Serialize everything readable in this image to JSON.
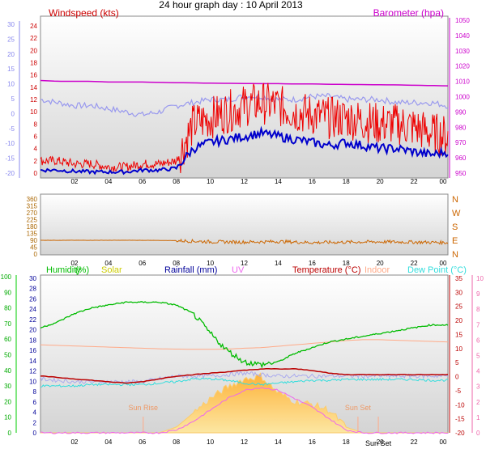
{
  "title": "24 hour graph day : 10 April 2013",
  "colors": {
    "wind": "#ee0000",
    "gust": "#0000cc",
    "winddir_line": "#9999ee",
    "baro": "#cc00cc",
    "dir": "#cc6600",
    "humidity": "#00bb00",
    "solar": "#cccc00",
    "solar_fill": "#ffcc66",
    "rain": "#000099",
    "uv": "#ee66ee",
    "temp": "#bb0000",
    "indoor": "#ffaa88",
    "dew": "#33dddd",
    "axis_green": "#00cc00",
    "axis_blue": "#8888ee",
    "axis_pink": "#ee66aa",
    "plot_bg_top": "#ffffff",
    "plot_bg_bottom": "#d6d6d6"
  },
  "x_ticks": [
    "02",
    "04",
    "06",
    "08",
    "10",
    "12",
    "14",
    "16",
    "18",
    "20",
    "22",
    "00"
  ],
  "chart_data": [
    {
      "type": "line",
      "panel": "wind",
      "labels": {
        "left": "Windspeed (kts)",
        "right": "Barometer (hpa)"
      },
      "left_axis_ticks": [
        "24",
        "22",
        "20",
        "18",
        "16",
        "14",
        "12",
        "10",
        "8",
        "6",
        "4",
        "2",
        "0"
      ],
      "outer_axis_ticks": [
        "30",
        "25",
        "20",
        "15",
        "10",
        "5",
        "0",
        "-5",
        "-10",
        "-15",
        "-20"
      ],
      "right_axis_ticks": [
        "1050",
        "1040",
        "1030",
        "1020",
        "1010",
        "1000",
        "990",
        "980",
        "970",
        "960",
        "950"
      ],
      "ylim_kts": [
        0,
        25
      ],
      "ylim_hpa": [
        948,
        1052
      ],
      "x_hours": [
        0,
        1,
        2,
        3,
        4,
        5,
        6,
        7,
        8,
        9,
        10,
        11,
        12,
        13,
        14,
        15,
        16,
        17,
        18,
        19,
        20,
        21,
        22,
        23,
        24
      ],
      "series": [
        {
          "key": "wind",
          "values": [
            2,
            2,
            1.5,
            1.5,
            1,
            1,
            1.5,
            1.5,
            2,
            8,
            9,
            10,
            11,
            11.5,
            11,
            10,
            9.5,
            9,
            9,
            8.5,
            8,
            8,
            7.5,
            6.5,
            6
          ]
        },
        {
          "key": "gust",
          "values": [
            0.5,
            0.5,
            0.3,
            0.2,
            0.2,
            0.2,
            0.5,
            0.5,
            0.8,
            4,
            5,
            5.5,
            6,
            6.5,
            6,
            5.5,
            5,
            4.5,
            5,
            4.5,
            4,
            4,
            3.5,
            3,
            3.5
          ]
        },
        {
          "key": "dirline",
          "values": [
            12,
            11.5,
            11,
            11,
            10.5,
            10,
            9.5,
            10,
            11,
            11.5,
            12,
            12,
            12.5,
            12.5,
            12,
            12,
            12.5,
            12.5,
            12,
            12,
            12,
            11.5,
            11.5,
            11.5,
            11
          ]
        },
        {
          "key": "baro_hpa",
          "values": [
            1012,
            1011.5,
            1011.5,
            1011.5,
            1011,
            1011,
            1011,
            1010.8,
            1010.6,
            1010.5,
            1010.3,
            1010.2,
            1010.1,
            1010,
            1010,
            1009.8,
            1009.8,
            1009.6,
            1009.5,
            1009.4,
            1009.3,
            1009.2,
            1009,
            1008.8,
            1008.6
          ]
        }
      ]
    },
    {
      "type": "line",
      "panel": "direction",
      "left_axis_ticks": [
        "360",
        "315",
        "270",
        "225",
        "180",
        "135",
        "90",
        "45",
        "0"
      ],
      "right_labels": [
        "N",
        "W",
        "S",
        "E",
        "N"
      ],
      "ylim": [
        0,
        360
      ],
      "x_hours": [
        0,
        2,
        4,
        6,
        8,
        10,
        12,
        14,
        16,
        18,
        20,
        22,
        24
      ],
      "series": [
        {
          "key": "dir",
          "values": [
            90,
            90,
            90,
            90,
            88,
            80,
            78,
            82,
            75,
            78,
            80,
            78,
            75
          ]
        }
      ]
    },
    {
      "type": "area",
      "panel": "multi",
      "legend": [
        {
          "key": "humidity",
          "text": "Humidity"
        },
        {
          "key": "humidity_unit",
          "text": "(%)"
        },
        {
          "key": "solar",
          "text": "Solar"
        },
        {
          "key": "rain",
          "text": "Rainfall (mm)"
        },
        {
          "key": "uv",
          "text": "UV"
        },
        {
          "key": "temp",
          "text": "Temperature (°C)"
        },
        {
          "key": "indoor",
          "text": "Indoor"
        },
        {
          "key": "dew",
          "text": "Dew Point (°C)"
        }
      ],
      "annotations": [
        "Sun Rise",
        "Sun Set",
        "Sun Set"
      ],
      "axis_humidity": [
        "100",
        "90",
        "80",
        "70",
        "60",
        "50",
        "40",
        "30",
        "20",
        "10",
        "0"
      ],
      "axis_rain": [
        "30",
        "28",
        "26",
        "24",
        "22",
        "20",
        "18",
        "16",
        "14",
        "12",
        "10",
        "8",
        "6",
        "4",
        "2",
        "0"
      ],
      "axis_temp": [
        "35",
        "30",
        "25",
        "20",
        "15",
        "10",
        "5",
        "0",
        "-5",
        "-10",
        "-15",
        "-20"
      ],
      "axis_uv": [
        "10",
        "9",
        "8",
        "7",
        "6",
        "5",
        "4",
        "3",
        "2",
        "1",
        "0"
      ],
      "ylim_temp": [
        -20,
        35
      ],
      "x_hours": [
        0,
        1,
        2,
        3,
        4,
        5,
        6,
        7,
        8,
        9,
        10,
        11,
        12,
        13,
        14,
        15,
        16,
        17,
        18,
        19,
        20,
        21,
        22,
        23,
        24
      ],
      "series": [
        {
          "key": "humidity_temp",
          "values": [
            17,
            19,
            22,
            24,
            25,
            26,
            26,
            26,
            25,
            22,
            15,
            9,
            5,
            4,
            5,
            8,
            10,
            12,
            13,
            14,
            15,
            16,
            17,
            18,
            18
          ]
        },
        {
          "key": "indoor",
          "values": [
            11,
            10.8,
            10.6,
            10.4,
            10.2,
            10,
            9.8,
            9.6,
            9.5,
            9.4,
            9.4,
            9.5,
            9.8,
            10,
            10.5,
            11,
            11.5,
            12,
            12.5,
            12.8,
            12.8,
            12.6,
            12.4,
            12.2,
            12
          ]
        },
        {
          "key": "temp",
          "values": [
            0,
            -0.5,
            -1,
            -1.5,
            -2,
            -2.5,
            -2,
            -1,
            0,
            0.5,
            1,
            1.5,
            2,
            2.5,
            2.5,
            2.5,
            2,
            1,
            0.5,
            0.5,
            0.5,
            0.5,
            0.5,
            0.5,
            0.5
          ]
        },
        {
          "key": "rain_temp",
          "values": [
            -1,
            -1.5,
            -2,
            -2,
            -2,
            -2,
            -2,
            -1,
            0,
            0,
            0,
            0.5,
            1,
            0.5,
            0,
            0,
            0,
            0,
            0,
            0,
            0,
            0,
            0,
            0,
            0
          ]
        },
        {
          "key": "dew",
          "values": [
            -3.5,
            -3.5,
            -3.5,
            -3,
            -3,
            -3,
            -3,
            -2.5,
            -2,
            -1,
            -1,
            -1.5,
            -2.5,
            -3,
            -2.5,
            -2,
            -1.5,
            -1.5,
            -1.2,
            -1.2,
            -1.2,
            -1.2,
            -1.2,
            -1.5,
            -1.5
          ]
        },
        {
          "key": "solar_temp",
          "values": [
            -20,
            -20,
            -20,
            -20,
            -20,
            -20,
            -20,
            -20,
            -18,
            -13,
            -8,
            -4,
            -1,
            0,
            -6,
            -9,
            -10,
            -12,
            -18,
            -20,
            -20,
            -20,
            -20,
            -20,
            -20
          ]
        },
        {
          "key": "uv_temp",
          "values": [
            -20,
            -20,
            -20,
            -20,
            -20,
            -20,
            -20,
            -20,
            -19,
            -16,
            -12,
            -8,
            -5,
            -4,
            -5,
            -8,
            -11,
            -15,
            -19,
            -20,
            -20,
            -20,
            -20,
            -20,
            -20
          ]
        }
      ]
    }
  ]
}
